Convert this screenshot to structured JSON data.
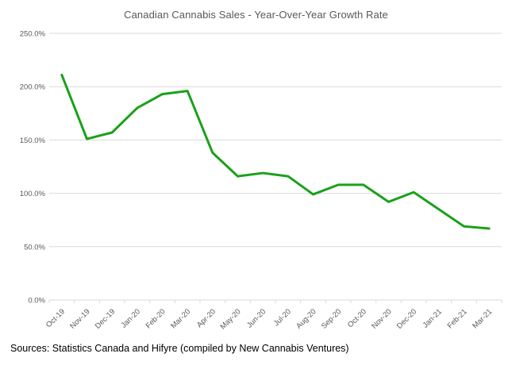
{
  "title": "Canadian Cannabis Sales - Year-Over-Year Growth Rate",
  "source_note": "Sources: Statistics Canada and Hifyre (compiled by New Cannabis Ventures)",
  "colors": {
    "line": "#1aa11a",
    "grid": "#d9d9d9",
    "axis": "#d9d9d9",
    "axis_text": "#595959",
    "title_text": "#595959",
    "source_text": "#000000",
    "background": "#ffffff"
  },
  "chart_data": {
    "type": "line",
    "title": "Canadian Cannabis Sales - Year-Over-Year Growth Rate",
    "xlabel": "",
    "ylabel": "",
    "categories": [
      "Oct-19",
      "Nov-19",
      "Dec-19",
      "Jan-20",
      "Feb-20",
      "Mar-20",
      "Apr-20",
      "May-20",
      "Jun-20",
      "Jul-20",
      "Aug-20",
      "Sep-20",
      "Oct-20",
      "Nov-20",
      "Dec-20",
      "Jan-21",
      "Feb-21",
      "Mar-21"
    ],
    "series": [
      {
        "name": "Year-Over-Year Growth Rate (%)",
        "values": [
          211,
          151,
          157,
          180,
          193,
          196,
          138,
          116,
          119,
          116,
          99,
          108,
          108,
          92,
          101,
          85,
          69,
          67
        ]
      }
    ],
    "ylim": [
      0,
      250
    ],
    "ytick_values": [
      0,
      50,
      100,
      150,
      200,
      250
    ],
    "ytick_labels": [
      "0.0%",
      "50.0%",
      "100.0%",
      "150.0%",
      "200.0%",
      "250.0%"
    ],
    "grid": true,
    "legend": false,
    "x_label_rotation_deg": -45
  }
}
